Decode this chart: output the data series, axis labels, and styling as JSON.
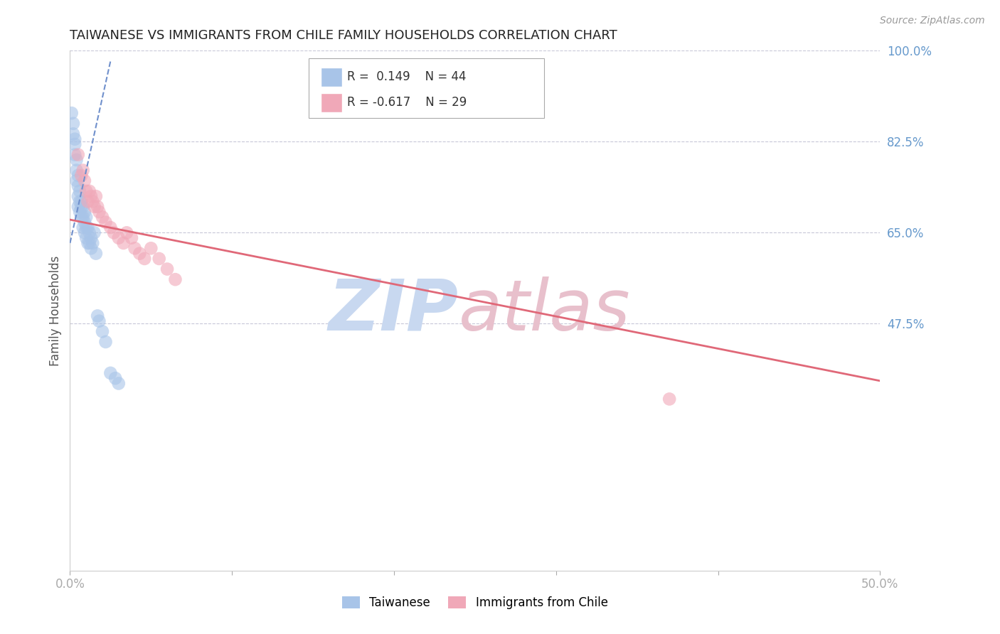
{
  "title": "TAIWANESE VS IMMIGRANTS FROM CHILE FAMILY HOUSEHOLDS CORRELATION CHART",
  "source": "Source: ZipAtlas.com",
  "ylabel": "Family Households",
  "xlim": [
    0.0,
    0.5
  ],
  "ylim": [
    0.0,
    1.0
  ],
  "xticks": [
    0.0,
    0.1,
    0.2,
    0.3,
    0.4,
    0.5
  ],
  "xticklabels": [
    "0.0%",
    "",
    "",
    "",
    "",
    "50.0%"
  ],
  "yticks_right": [
    1.0,
    0.825,
    0.65,
    0.475
  ],
  "yticklabels_right": [
    "100.0%",
    "82.5%",
    "65.0%",
    "47.5%"
  ],
  "grid_color": "#c8c8d8",
  "background_color": "#ffffff",
  "blue_color": "#a8c4e8",
  "pink_color": "#f0a8b8",
  "blue_line_color": "#7090cc",
  "pink_line_color": "#e06878",
  "legend_label1": "Taiwanese",
  "legend_label2": "Immigrants from Chile",
  "blue_x": [
    0.001,
    0.002,
    0.002,
    0.003,
    0.003,
    0.003,
    0.004,
    0.004,
    0.004,
    0.005,
    0.005,
    0.005,
    0.005,
    0.006,
    0.006,
    0.006,
    0.007,
    0.007,
    0.007,
    0.008,
    0.008,
    0.008,
    0.009,
    0.009,
    0.009,
    0.01,
    0.01,
    0.01,
    0.011,
    0.011,
    0.012,
    0.012,
    0.013,
    0.013,
    0.014,
    0.015,
    0.016,
    0.017,
    0.018,
    0.02,
    0.022,
    0.025,
    0.028,
    0.03
  ],
  "blue_y": [
    0.88,
    0.86,
    0.84,
    0.83,
    0.82,
    0.8,
    0.79,
    0.77,
    0.75,
    0.76,
    0.74,
    0.72,
    0.7,
    0.73,
    0.71,
    0.69,
    0.71,
    0.7,
    0.68,
    0.7,
    0.68,
    0.66,
    0.69,
    0.67,
    0.65,
    0.68,
    0.66,
    0.64,
    0.66,
    0.63,
    0.65,
    0.63,
    0.64,
    0.62,
    0.63,
    0.65,
    0.61,
    0.49,
    0.48,
    0.46,
    0.44,
    0.38,
    0.37,
    0.36
  ],
  "pink_x": [
    0.005,
    0.007,
    0.008,
    0.009,
    0.01,
    0.011,
    0.012,
    0.013,
    0.014,
    0.015,
    0.016,
    0.017,
    0.018,
    0.02,
    0.022,
    0.025,
    0.027,
    0.03,
    0.033,
    0.035,
    0.038,
    0.04,
    0.043,
    0.046,
    0.05,
    0.055,
    0.06,
    0.065,
    0.37
  ],
  "pink_y": [
    0.8,
    0.76,
    0.77,
    0.75,
    0.73,
    0.71,
    0.73,
    0.72,
    0.71,
    0.7,
    0.72,
    0.7,
    0.69,
    0.68,
    0.67,
    0.66,
    0.65,
    0.64,
    0.63,
    0.65,
    0.64,
    0.62,
    0.61,
    0.6,
    0.62,
    0.6,
    0.58,
    0.56,
    0.33
  ],
  "blue_trendline_x": [
    0.0,
    0.025
  ],
  "blue_trendline_y": [
    0.63,
    0.98
  ],
  "pink_trendline_x": [
    0.0,
    0.5
  ],
  "pink_trendline_y": [
    0.675,
    0.365
  ],
  "watermark_zip_color": "#c8d8f0",
  "watermark_atlas_color": "#e8c0cc"
}
